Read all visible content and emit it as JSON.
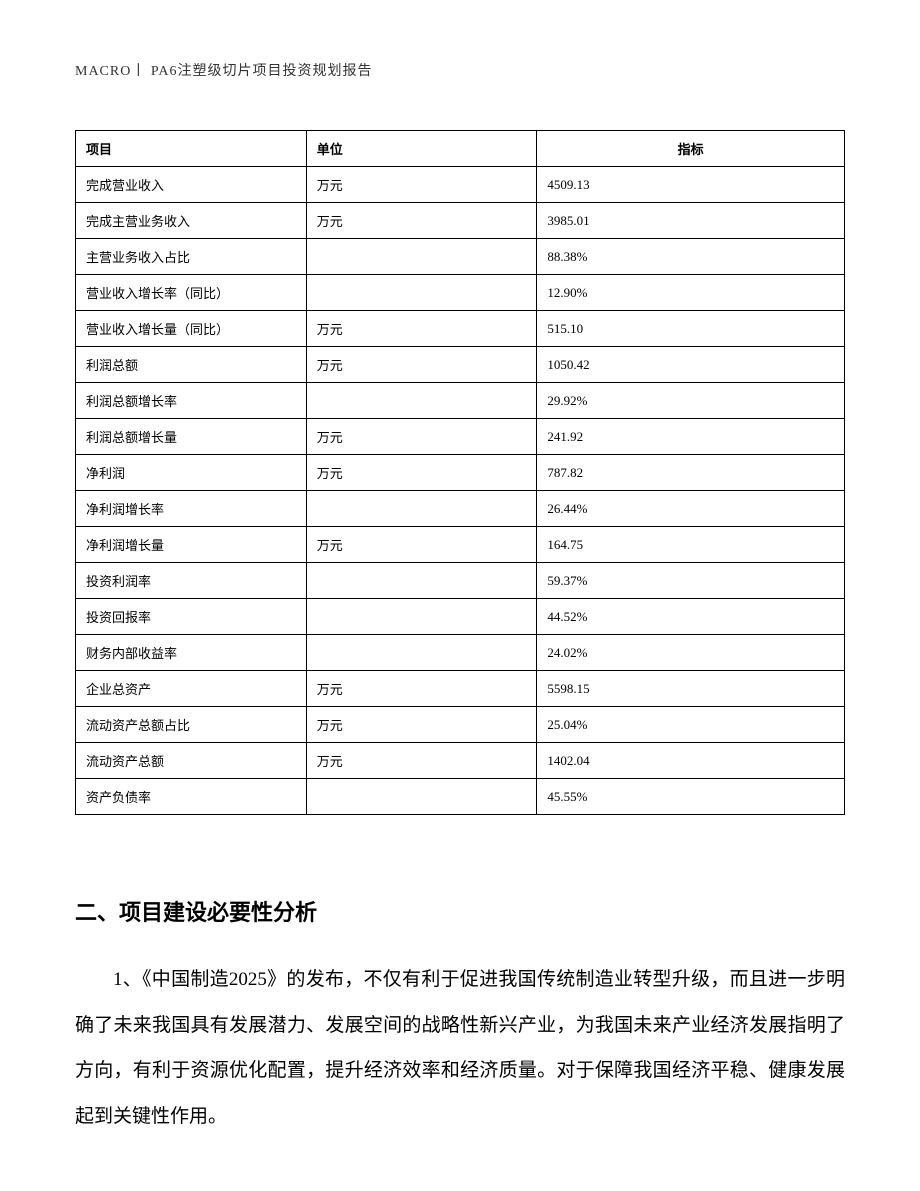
{
  "header": {
    "text": "MACRO丨 PA6注塑级切片项目投资规划报告"
  },
  "table": {
    "columns": [
      "项目",
      "单位",
      "指标"
    ],
    "rows": [
      [
        "完成营业收入",
        "万元",
        "4509.13"
      ],
      [
        "完成主营业务收入",
        "万元",
        "3985.01"
      ],
      [
        "主营业务收入占比",
        "",
        "88.38%"
      ],
      [
        "营业收入增长率（同比）",
        "",
        "12.90%"
      ],
      [
        "营业收入增长量（同比）",
        "万元",
        "515.10"
      ],
      [
        "利润总额",
        "万元",
        "1050.42"
      ],
      [
        "利润总额增长率",
        "",
        "29.92%"
      ],
      [
        "利润总额增长量",
        "万元",
        "241.92"
      ],
      [
        "净利润",
        "万元",
        "787.82"
      ],
      [
        "净利润增长率",
        "",
        "26.44%"
      ],
      [
        "净利润增长量",
        "万元",
        "164.75"
      ],
      [
        "投资利润率",
        "",
        "59.37%"
      ],
      [
        "投资回报率",
        "",
        "44.52%"
      ],
      [
        "财务内部收益率",
        "",
        "24.02%"
      ],
      [
        "企业总资产",
        "万元",
        "5598.15"
      ],
      [
        "流动资产总额占比",
        "万元",
        "25.04%"
      ],
      [
        "流动资产总额",
        "万元",
        "1402.04"
      ],
      [
        "资产负债率",
        "",
        "45.55%"
      ]
    ]
  },
  "section": {
    "heading": "二、项目建设必要性分析",
    "paragraph1": "1、《中国制造2025》的发布，不仅有利于促进我国传统制造业转型升级，而且进一步明确了未来我国具有发展潜力、发展空间的战略性新兴产业，为我国未来产业经济发展指明了方向，有利于资源优化配置，提升经济效率和经济质量。对于保障我国经济平稳、健康发展起到关键性作用。"
  }
}
